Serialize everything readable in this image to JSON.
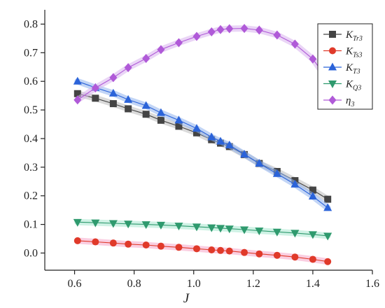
{
  "chart_data": {
    "type": "line",
    "xlabel": "J",
    "ylabel": "",
    "xlim": [
      0.5,
      1.6
    ],
    "ylim": [
      -0.06,
      0.85
    ],
    "xticks": [
      "0.6",
      "0.8",
      "1.0",
      "1.2",
      "1.4",
      "1.6"
    ],
    "yticks": [
      "0.0",
      "0.1",
      "0.2",
      "0.3",
      "0.4",
      "0.5",
      "0.6",
      "0.7",
      "0.8"
    ],
    "grid": false,
    "legend_position": "top-right",
    "series": [
      {
        "name": "K_Tr3",
        "label_main": "K",
        "label_sub": "Tr3",
        "marker": "square",
        "color": "#444444",
        "band_color": "#bbbbbb",
        "x": [
          0.61,
          0.67,
          0.73,
          0.78,
          0.84,
          0.89,
          0.95,
          1.01,
          1.06,
          1.09,
          1.12,
          1.17,
          1.22,
          1.28,
          1.34,
          1.4,
          1.45
        ],
        "y": [
          0.557,
          0.541,
          0.522,
          0.504,
          0.485,
          0.464,
          0.443,
          0.42,
          0.396,
          0.384,
          0.372,
          0.344,
          0.313,
          0.285,
          0.253,
          0.22,
          0.188
        ]
      },
      {
        "name": "K_Ts3",
        "label_main": "K",
        "label_sub": "Ts3",
        "marker": "circle",
        "color": "#e03a2a",
        "band_color": "#f5a6c8",
        "x": [
          0.61,
          0.67,
          0.73,
          0.78,
          0.84,
          0.89,
          0.95,
          1.01,
          1.06,
          1.09,
          1.12,
          1.17,
          1.22,
          1.28,
          1.34,
          1.4,
          1.45
        ],
        "y": [
          0.043,
          0.039,
          0.035,
          0.031,
          0.028,
          0.024,
          0.02,
          0.015,
          0.011,
          0.009,
          0.007,
          0.002,
          -0.003,
          -0.008,
          -0.014,
          -0.022,
          -0.03
        ]
      },
      {
        "name": "K_T3",
        "label_main": "K",
        "label_sub": "T3",
        "marker": "triangle-up",
        "color": "#2b63d9",
        "band_color": "#8fb2ee",
        "x": [
          0.61,
          0.67,
          0.73,
          0.78,
          0.84,
          0.89,
          0.95,
          1.01,
          1.06,
          1.09,
          1.12,
          1.17,
          1.22,
          1.28,
          1.34,
          1.4,
          1.45
        ],
        "y": [
          0.6,
          0.578,
          0.558,
          0.536,
          0.515,
          0.49,
          0.464,
          0.435,
          0.405,
          0.39,
          0.377,
          0.345,
          0.313,
          0.277,
          0.24,
          0.198,
          0.158
        ]
      },
      {
        "name": "K_Q3",
        "label_main": "K",
        "label_sub": "Q3",
        "marker": "triangle-down",
        "color": "#2f9a6e",
        "band_color": "#a7e8d0",
        "x": [
          0.61,
          0.67,
          0.73,
          0.78,
          0.84,
          0.89,
          0.95,
          1.01,
          1.06,
          1.09,
          1.12,
          1.17,
          1.22,
          1.28,
          1.34,
          1.4,
          1.45
        ],
        "y": [
          0.108,
          0.106,
          0.104,
          0.102,
          0.1,
          0.098,
          0.095,
          0.092,
          0.089,
          0.087,
          0.085,
          0.082,
          0.078,
          0.074,
          0.07,
          0.065,
          0.06
        ]
      },
      {
        "name": "η3",
        "label_main": "η",
        "label_sub": "3",
        "marker": "diamond",
        "color": "#b05ad8",
        "band_color": "#d9b3ee",
        "x": [
          0.61,
          0.67,
          0.73,
          0.78,
          0.84,
          0.89,
          0.95,
          1.01,
          1.06,
          1.09,
          1.12,
          1.17,
          1.22,
          1.28,
          1.34,
          1.4,
          1.45
        ],
        "y": [
          0.535,
          0.577,
          0.613,
          0.648,
          0.68,
          0.711,
          0.735,
          0.757,
          0.773,
          0.781,
          0.784,
          0.785,
          0.779,
          0.762,
          0.73,
          0.678,
          0.607
        ]
      }
    ]
  }
}
